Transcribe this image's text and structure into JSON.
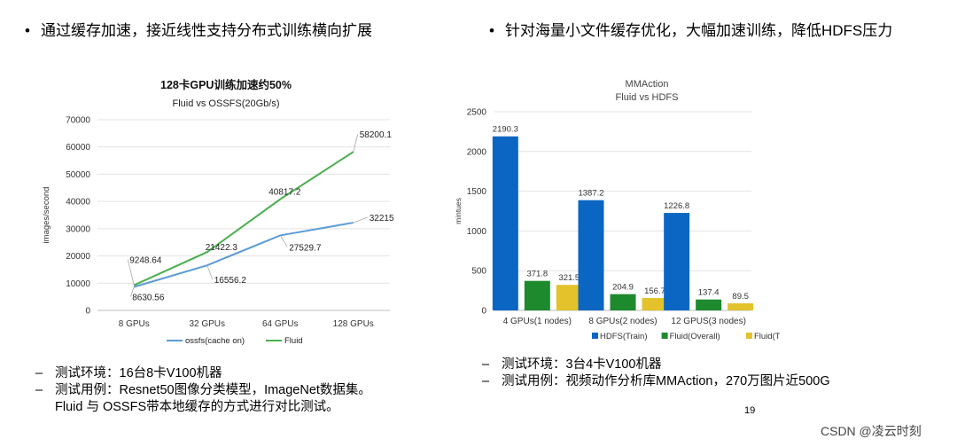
{
  "slide": {
    "left_heading": "通过缓存加速，接近线性支持分布式训练横向扩展",
    "right_heading": "针对海量小文件缓存优化，大幅加速训练，降低HDFS压力",
    "bullet_symbol": "•",
    "dash_symbol": "–",
    "left_notes": [
      "测试环境：16台8卡V100机器",
      "测试用例：Resnet50图像分类模型，ImageNet数据集。",
      "Fluid 与 OSSFS带本地缓存的方式进行对比测试。"
    ],
    "right_notes": [
      "测试环境：3台4卡V100机器",
      "测试用例：视频动作分析库MMAction，270万图片近500G"
    ],
    "page_number": "19",
    "watermark": "CSDN @凌云时刻"
  },
  "chart_data": [
    {
      "type": "line",
      "title": "128卡GPU训练加速约50%",
      "subtitle": "Fluid vs OSSFS(20Gb/s)",
      "xlabel": "",
      "ylabel": "images/second",
      "categories": [
        "8 GPUs",
        "32 GPUs",
        "64 GPUs",
        "128 GPUs"
      ],
      "ylim": [
        0,
        70000
      ],
      "yticks": [
        0,
        10000,
        20000,
        30000,
        40000,
        50000,
        60000,
        70000
      ],
      "grid": true,
      "legend": "bottom",
      "series": [
        {
          "name": "ossfs(cache on)",
          "color": "#5b9bd5",
          "values": [
            8630.56,
            16556.2,
            27529.7,
            32215
          ],
          "labels": [
            "8630.56",
            "16556.2",
            "27529.7",
            "32215"
          ]
        },
        {
          "name": "Fluid",
          "color": "#4caf50",
          "values": [
            9248.64,
            21422.3,
            40817.2,
            58200.1
          ],
          "labels": [
            "9248.64",
            "21422.3",
            "40817.2",
            "58200.1"
          ]
        }
      ]
    },
    {
      "type": "bar",
      "title": "MMAction",
      "subtitle": "Fluid vs HDFS",
      "xlabel": "",
      "ylabel": "mintues",
      "categories": [
        "4 GPUs(1 nodes)",
        "8 GPUs(2 nodes)",
        "12 GPUS(3 nodes)"
      ],
      "ylim": [
        0,
        2500
      ],
      "yticks": [
        0,
        500,
        1000,
        1500,
        2000,
        2500
      ],
      "grid": true,
      "legend": "bottom",
      "series": [
        {
          "name": "HDFS(Train)",
          "color": "#0a66c2",
          "values": [
            2190.3,
            1387.2,
            1226.8
          ],
          "labels": [
            "2190.3",
            "1387.2",
            "1226.8"
          ]
        },
        {
          "name": "Fluid(Overall)",
          "color": "#1e8a2e",
          "values": [
            371.8,
            204.9,
            137.4
          ],
          "labels": [
            "371.8",
            "204.9",
            "137.4"
          ]
        },
        {
          "name": "Fluid(Train)",
          "color": "#e3c22c",
          "values": [
            321.5,
            156.7,
            89.5
          ],
          "labels": [
            "321.5",
            "156.7",
            "89.5"
          ]
        }
      ]
    }
  ]
}
